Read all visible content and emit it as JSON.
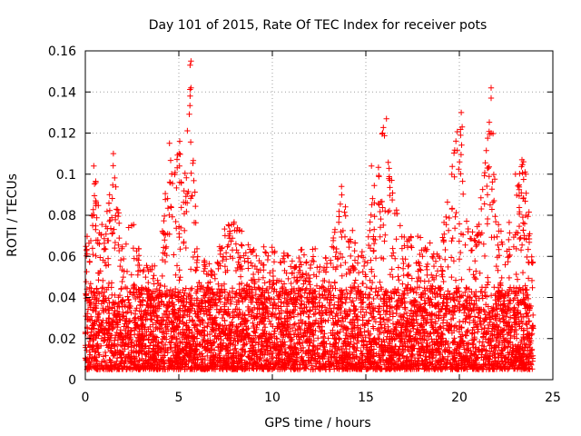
{
  "chart_data": {
    "type": "scatter",
    "title": "Day 101 of 2015, Rate Of TEC Index for receiver pots",
    "xlabel": "GPS time / hours",
    "ylabel": "ROTI / TECUs",
    "xlim": [
      0,
      25
    ],
    "ylim": [
      0,
      0.16
    ],
    "xticks": [
      0,
      5,
      10,
      15,
      20,
      25
    ],
    "xtick_labels": [
      "0",
      "5",
      "10",
      "15",
      "20",
      "25"
    ],
    "yticks": [
      0,
      0.02,
      0.04,
      0.06,
      0.08,
      0.1,
      0.12,
      0.14,
      0.16
    ],
    "ytick_labels": [
      "0",
      "0.02",
      "0.04",
      "0.06",
      "0.08",
      "0.1",
      "0.12",
      "0.14",
      "0.16"
    ],
    "grid": true,
    "marker": "+",
    "color": "#ff0000",
    "data_range_hours": [
      0,
      23.95
    ],
    "baseline_band": {
      "low": 0.005,
      "high": 0.045
    },
    "envelope": [
      {
        "x": 0.0,
        "max": 0.063
      },
      {
        "x": 0.5,
        "max": 0.1
      },
      {
        "x": 1.0,
        "max": 0.07
      },
      {
        "x": 1.5,
        "max": 0.11
      },
      {
        "x": 2.0,
        "max": 0.07
      },
      {
        "x": 2.5,
        "max": 0.08
      },
      {
        "x": 3.0,
        "max": 0.06
      },
      {
        "x": 3.5,
        "max": 0.055
      },
      {
        "x": 4.0,
        "max": 0.06
      },
      {
        "x": 4.5,
        "max": 0.115
      },
      {
        "x": 5.0,
        "max": 0.116
      },
      {
        "x": 5.3,
        "max": 0.1
      },
      {
        "x": 5.6,
        "max": 0.155
      },
      {
        "x": 6.0,
        "max": 0.06
      },
      {
        "x": 7.0,
        "max": 0.055
      },
      {
        "x": 7.5,
        "max": 0.083
      },
      {
        "x": 8.0,
        "max": 0.077
      },
      {
        "x": 9.0,
        "max": 0.065
      },
      {
        "x": 10.0,
        "max": 0.065
      },
      {
        "x": 11.0,
        "max": 0.06
      },
      {
        "x": 12.0,
        "max": 0.066
      },
      {
        "x": 13.0,
        "max": 0.06
      },
      {
        "x": 13.7,
        "max": 0.094
      },
      {
        "x": 14.5,
        "max": 0.065
      },
      {
        "x": 15.0,
        "max": 0.065
      },
      {
        "x": 15.5,
        "max": 0.1
      },
      {
        "x": 16.0,
        "max": 0.127
      },
      {
        "x": 16.5,
        "max": 0.09
      },
      {
        "x": 17.0,
        "max": 0.07
      },
      {
        "x": 18.0,
        "max": 0.07
      },
      {
        "x": 19.0,
        "max": 0.065
      },
      {
        "x": 20.0,
        "max": 0.13
      },
      {
        "x": 20.5,
        "max": 0.07
      },
      {
        "x": 21.0,
        "max": 0.075
      },
      {
        "x": 21.7,
        "max": 0.142
      },
      {
        "x": 22.0,
        "max": 0.08
      },
      {
        "x": 22.5,
        "max": 0.065
      },
      {
        "x": 23.0,
        "max": 0.1
      },
      {
        "x": 23.5,
        "max": 0.107
      },
      {
        "x": 23.95,
        "max": 0.06
      }
    ],
    "notable_points": [
      {
        "x": 5.65,
        "y": 0.155
      },
      {
        "x": 5.6,
        "y": 0.153
      },
      {
        "x": 5.65,
        "y": 0.142
      },
      {
        "x": 5.6,
        "y": 0.138
      },
      {
        "x": 21.7,
        "y": 0.142
      },
      {
        "x": 21.7,
        "y": 0.137
      },
      {
        "x": 21.7,
        "y": 0.12
      },
      {
        "x": 20.1,
        "y": 0.13
      },
      {
        "x": 20.15,
        "y": 0.123
      },
      {
        "x": 16.1,
        "y": 0.127
      },
      {
        "x": 15.9,
        "y": 0.12
      },
      {
        "x": 4.5,
        "y": 0.115
      },
      {
        "x": 5.05,
        "y": 0.116
      },
      {
        "x": 1.5,
        "y": 0.11
      },
      {
        "x": 23.35,
        "y": 0.107
      },
      {
        "x": 0.45,
        "y": 0.104
      },
      {
        "x": 15.3,
        "y": 0.104
      },
      {
        "x": 21.5,
        "y": 0.103
      },
      {
        "x": 23.0,
        "y": 0.1
      },
      {
        "x": 13.7,
        "y": 0.094
      }
    ]
  }
}
